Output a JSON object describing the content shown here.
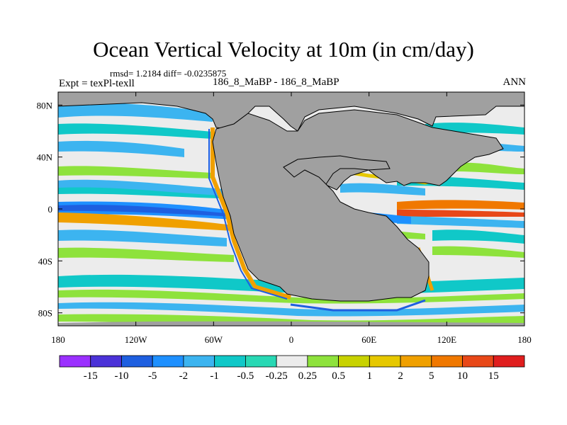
{
  "chart_data": {
    "type": "heatmap",
    "title": "Ocean Vertical Velocity at 10m (in cm/day)",
    "stats_text": "rmsd= 1.2184 diff= -0.0235875",
    "left_subtitle": "Expt = texPl-texll",
    "center_subtitle": "186_8_MaBP - 186_8_MaBP",
    "right_subtitle": "ANN",
    "x_ticks": [
      "180",
      "120W",
      "60W",
      "0",
      "60E",
      "120E",
      "180"
    ],
    "x_tick_lon": [
      -180,
      -120,
      -60,
      0,
      60,
      120,
      180
    ],
    "y_ticks": [
      "80N",
      "40N",
      "0",
      "40S",
      "80S"
    ],
    "y_tick_lat": [
      80,
      40,
      0,
      -40,
      -80
    ],
    "xlim": [
      -180,
      180
    ],
    "ylim": [
      -90,
      90
    ],
    "legend_position": "bottom",
    "colorbar_labels": [
      "-15",
      "-10",
      "-5",
      "-2",
      "-1",
      "-0.5",
      "-0.25",
      "0.25",
      "0.5",
      "1",
      "2",
      "5",
      "10",
      "15"
    ],
    "colorbar_colors": [
      "#9b30ff",
      "#4b32d8",
      "#1e5fe0",
      "#1e90ff",
      "#3cb4f0",
      "#10c8c8",
      "#28d8b4",
      "#ececec",
      "#8ee23c",
      "#c8d200",
      "#e6c800",
      "#f0a000",
      "#f07800",
      "#e84818",
      "#e01e1e"
    ],
    "land_color": "#a0a0a0"
  }
}
